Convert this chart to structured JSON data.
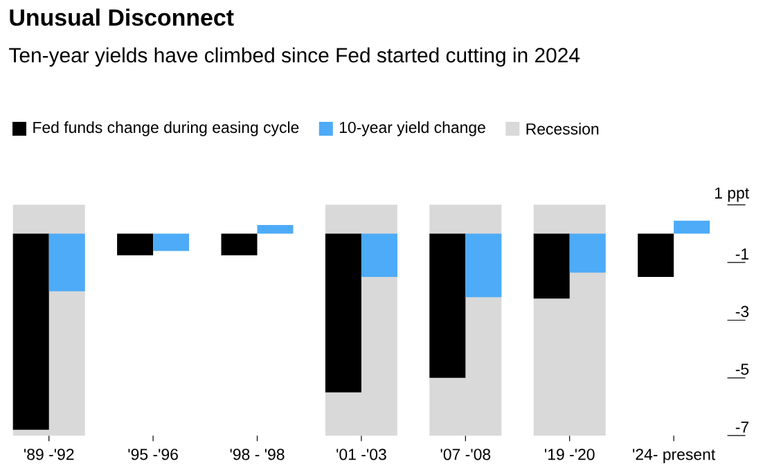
{
  "chart_data": {
    "type": "bar",
    "title": "Unusual Disconnect",
    "subtitle": "Ten-year yields have climbed since Fed started cutting in 2024",
    "categories": [
      "'89 -'92",
      "'95 -'96",
      "'98 - '98",
      "'01 -'03",
      "'07 -'08",
      "'19 -'20",
      "'24- present"
    ],
    "series": [
      {
        "name": "Fed funds change during easing cycle",
        "color": "#000000",
        "values": [
          -6.8,
          -0.75,
          -0.75,
          -5.5,
          -5.0,
          -2.25,
          -1.5
        ]
      },
      {
        "name": "10-year yield change",
        "color": "#4dabf7",
        "values": [
          -2.0,
          -0.6,
          0.3,
          -1.5,
          -2.2,
          -1.35,
          0.45
        ]
      },
      {
        "name": "Recession",
        "color": "#d9d9d9",
        "base": [
          -7,
          null,
          null,
          -7,
          -7,
          -7,
          null
        ],
        "values": [
          8,
          null,
          null,
          8,
          8,
          8,
          null
        ]
      }
    ],
    "ylim": [
      -7,
      1
    ],
    "yticks": [
      {
        "value": 1,
        "label": "1 ppt"
      },
      -1,
      -3,
      -5,
      -7
    ],
    "legend": "top left",
    "grid": false
  }
}
